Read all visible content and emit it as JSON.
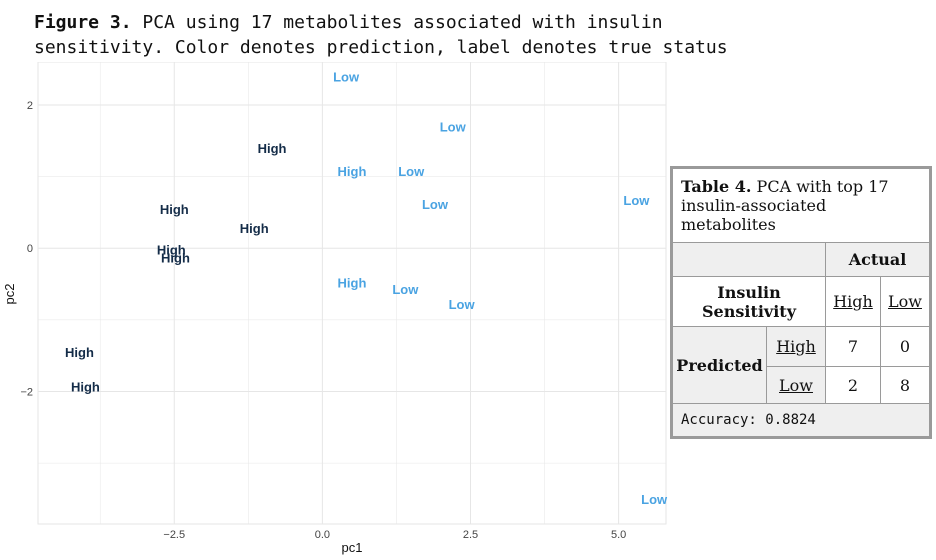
{
  "figure": {
    "label": "Figure 3.",
    "caption": " PCA using 17 metabolites associated with insulin\nsensitivity. Color denotes prediction, label denotes true status"
  },
  "colors": {
    "predicted_high": "#142c48",
    "predicted_low": "#4aa3e2",
    "grid": "#e6e6e6"
  },
  "chart_data": {
    "type": "scatter",
    "title": "",
    "xlabel": "pc1",
    "ylabel": "pc2",
    "xlim": [
      -4.8,
      5.8
    ],
    "ylim": [
      -3.85,
      2.6
    ],
    "xticks": [
      -2.5,
      0.0,
      2.5,
      5.0
    ],
    "xtick_labels": [
      "−2.5",
      "0.0",
      "2.5",
      "5.0"
    ],
    "yticks": [
      -2,
      0,
      2
    ],
    "ytick_labels": [
      "−2",
      "0",
      "2"
    ],
    "grid": true,
    "points": [
      {
        "x": 0.4,
        "y": 2.4,
        "label": "Low",
        "predicted": "Low"
      },
      {
        "x": 2.2,
        "y": 1.7,
        "label": "Low",
        "predicted": "Low"
      },
      {
        "x": -0.85,
        "y": 1.4,
        "label": "High",
        "predicted": "High"
      },
      {
        "x": 0.5,
        "y": 1.08,
        "label": "High",
        "predicted": "Low"
      },
      {
        "x": 1.5,
        "y": 1.08,
        "label": "Low",
        "predicted": "Low"
      },
      {
        "x": 1.9,
        "y": 0.62,
        "label": "Low",
        "predicted": "Low"
      },
      {
        "x": 5.3,
        "y": 0.67,
        "label": "Low",
        "predicted": "Low"
      },
      {
        "x": -2.5,
        "y": 0.55,
        "label": "High",
        "predicted": "High"
      },
      {
        "x": -1.15,
        "y": 0.28,
        "label": "High",
        "predicted": "High"
      },
      {
        "x": -2.55,
        "y": -0.02,
        "label": "High",
        "predicted": "High"
      },
      {
        "x": -2.48,
        "y": -0.13,
        "label": "High",
        "predicted": "High"
      },
      {
        "x": 0.5,
        "y": -0.48,
        "label": "High",
        "predicted": "Low"
      },
      {
        "x": 1.4,
        "y": -0.57,
        "label": "Low",
        "predicted": "Low"
      },
      {
        "x": 2.35,
        "y": -0.78,
        "label": "Low",
        "predicted": "Low"
      },
      {
        "x": -4.1,
        "y": -1.45,
        "label": "High",
        "predicted": "High"
      },
      {
        "x": -4.0,
        "y": -1.93,
        "label": "High",
        "predicted": "High"
      },
      {
        "x": 5.6,
        "y": -3.5,
        "label": "Low",
        "predicted": "Low"
      }
    ]
  },
  "table": {
    "title_bold": "Table 4.",
    "title_rest": " PCA with top 17 insulin-associated metabolites",
    "actual_header": "Actual",
    "row_header": "Insulin Sensitivity",
    "col_high": "High",
    "col_low": "Low",
    "predicted_header": "Predicted",
    "pred_high": "High",
    "pred_low": "Low",
    "cells": {
      "hh": "7",
      "hl": "0",
      "lh": "2",
      "ll": "8"
    },
    "accuracy": "Accuracy: 0.8824"
  }
}
